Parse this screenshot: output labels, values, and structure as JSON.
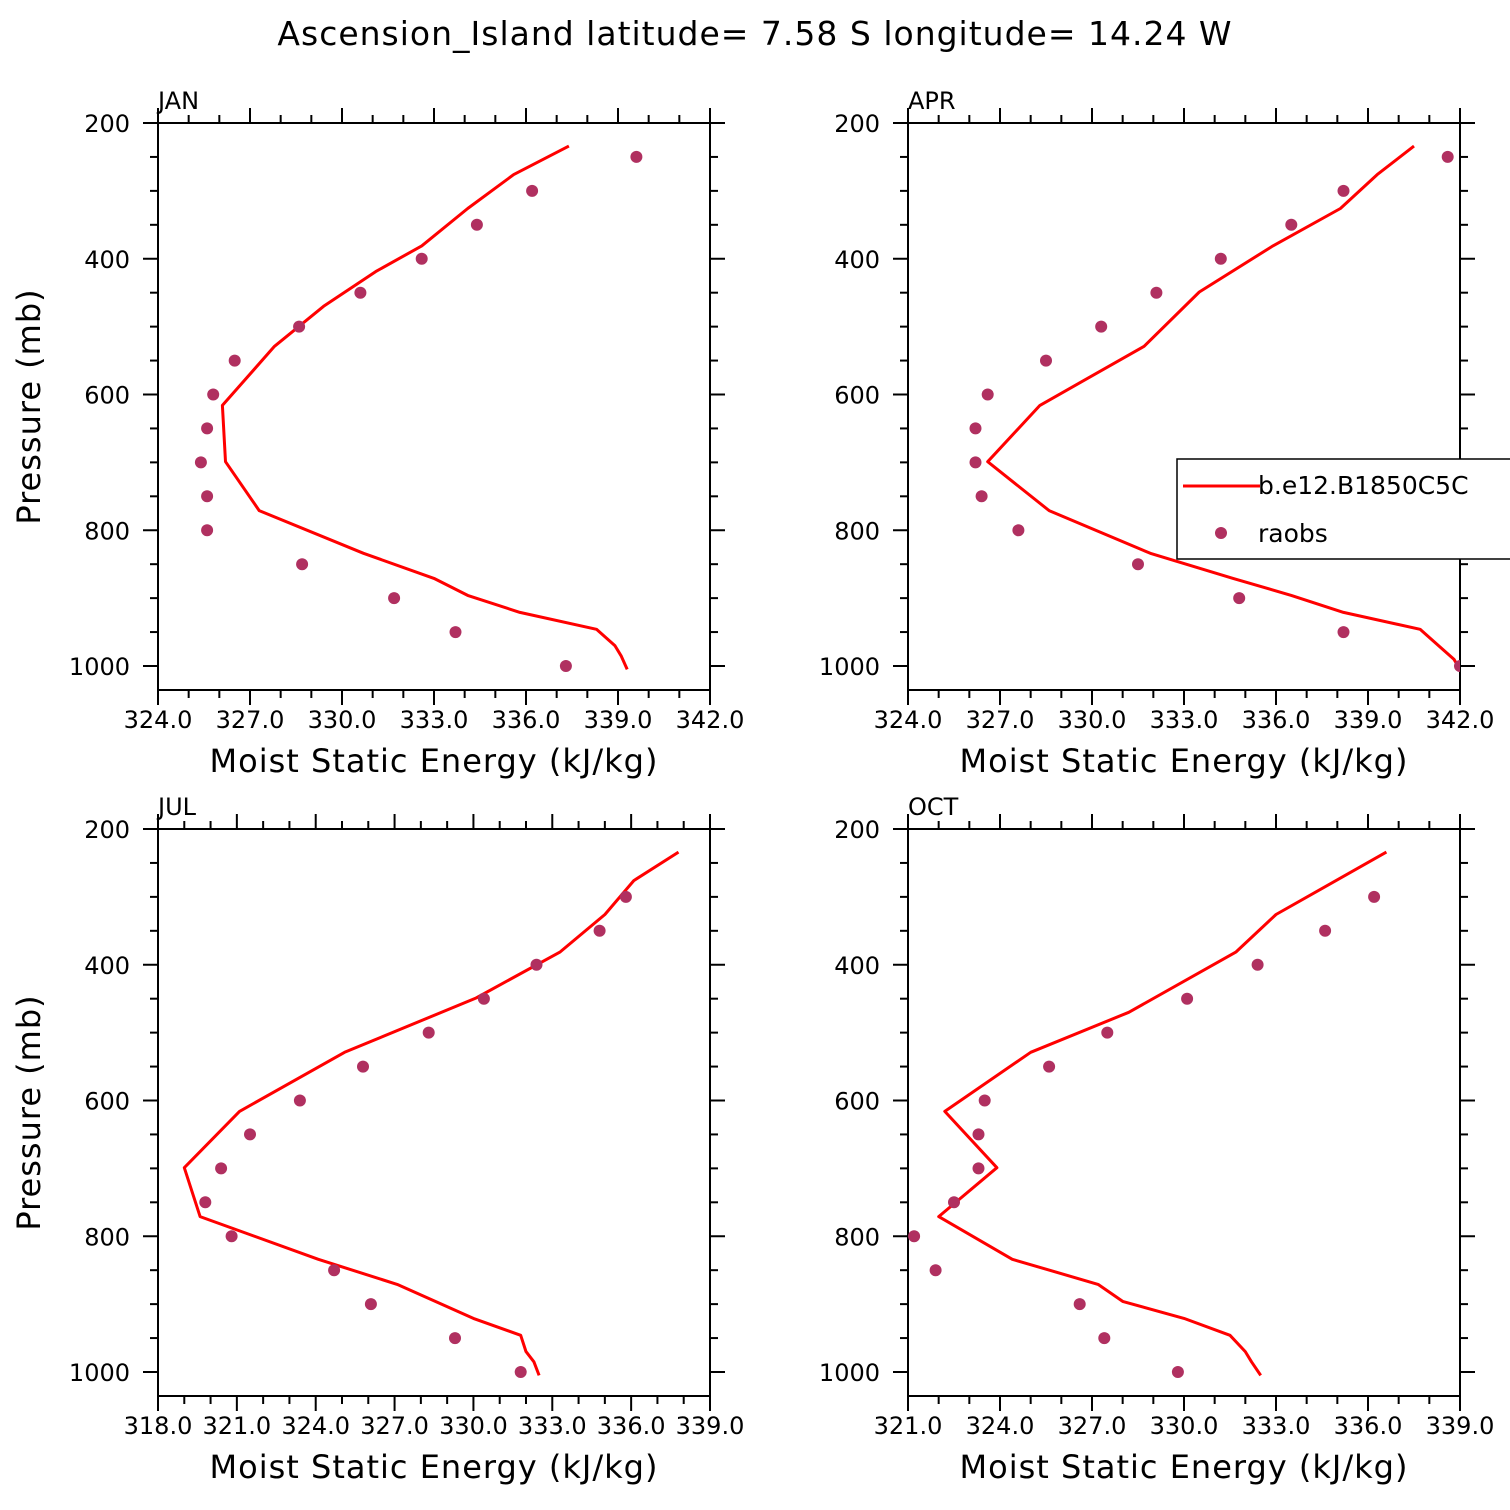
{
  "title": "Ascension_Island  latitude= 7.58 S longitude= 14.24 W",
  "colors": {
    "model_line": "#ff0000",
    "obs_marker": "#b03060"
  },
  "legend": {
    "model_label": "b.e12.B1850C5C",
    "obs_label": "raobs"
  },
  "chart_data": [
    {
      "type": "line",
      "panel": "JAN",
      "xlabel": "Moist Static Energy (kJ/kg)",
      "ylabel": "Pressure (mb)",
      "xlim": [
        324,
        342
      ],
      "ylim": [
        1000,
        200
      ],
      "x_ticks": [
        324,
        327,
        330,
        333,
        336,
        339,
        342
      ],
      "x_tick_labels": [
        "324.0",
        "327.0",
        "330.0",
        "333.0",
        "336.0",
        "339.0",
        "342.0"
      ],
      "y_ticks": [
        200,
        400,
        600,
        800,
        1000
      ],
      "y_tick_labels": [
        "200",
        "400",
        "600",
        "800",
        "1000"
      ],
      "series": [
        {
          "kind": "model",
          "x": [
            339.3,
            339.1,
            338.9,
            338.3,
            335.8,
            334.1,
            333.0,
            330.7,
            327.3,
            326.2,
            326.1,
            327.8,
            329.4,
            331.1,
            332.6,
            334.1,
            335.6,
            337.4
          ],
          "y": [
            1005,
            985,
            970,
            946,
            921,
            896,
            871,
            834,
            771,
            699,
            616,
            529,
            470,
            419,
            381,
            326,
            276,
            234
          ]
        },
        {
          "kind": "obs",
          "x": [
            337.3,
            333.7,
            331.7,
            328.7,
            325.6,
            325.6,
            325.4,
            325.6,
            325.8,
            326.5,
            328.6,
            330.6,
            332.6,
            334.4,
            336.2,
            339.6
          ],
          "y": [
            1000,
            950,
            900,
            850,
            800,
            750,
            700,
            650,
            600,
            550,
            500,
            450,
            400,
            350,
            300,
            250
          ]
        }
      ]
    },
    {
      "type": "line",
      "panel": "APR",
      "xlabel": "Moist Static Energy (kJ/kg)",
      "ylabel": "",
      "xlim": [
        324,
        342
      ],
      "ylim": [
        1000,
        200
      ],
      "x_ticks": [
        324,
        327,
        330,
        333,
        336,
        339,
        342
      ],
      "x_tick_labels": [
        "324.0",
        "327.0",
        "330.0",
        "333.0",
        "336.0",
        "339.0",
        "342.0"
      ],
      "y_ticks": [
        200,
        400,
        600,
        800,
        1000
      ],
      "y_tick_labels": [
        "200",
        "400",
        "600",
        "800",
        "1000"
      ],
      "series": [
        {
          "kind": "model",
          "x": [
            342.0,
            341.8,
            341.3,
            340.7,
            338.2,
            336.5,
            334.6,
            331.9,
            328.6,
            326.6,
            328.3,
            331.7,
            333.5,
            335.9,
            338.1,
            339.3,
            340.5
          ],
          "y": [
            1005,
            990,
            970,
            946,
            921,
            896,
            871,
            834,
            771,
            699,
            616,
            529,
            449,
            381,
            326,
            276,
            234
          ]
        },
        {
          "kind": "obs",
          "x": [
            342.0,
            338.2,
            334.8,
            331.5,
            327.6,
            326.4,
            326.2,
            326.2,
            326.6,
            328.5,
            330.3,
            332.1,
            334.2,
            336.5,
            338.2,
            341.6
          ],
          "y": [
            1000,
            950,
            900,
            850,
            800,
            750,
            700,
            650,
            600,
            550,
            500,
            450,
            400,
            350,
            300,
            250
          ]
        }
      ]
    },
    {
      "type": "line",
      "panel": "JUL",
      "xlabel": "Moist Static Energy (kJ/kg)",
      "ylabel": "Pressure (mb)",
      "xlim": [
        318,
        339
      ],
      "ylim": [
        1000,
        200
      ],
      "x_ticks": [
        318,
        321,
        324,
        327,
        330,
        333,
        336,
        339
      ],
      "x_tick_labels": [
        "318.0",
        "321.0",
        "324.0",
        "327.0",
        "330.0",
        "333.0",
        "336.0",
        "339.0"
      ],
      "y_ticks": [
        200,
        400,
        600,
        800,
        1000
      ],
      "y_tick_labels": [
        "200",
        "400",
        "600",
        "800",
        "1000"
      ],
      "series": [
        {
          "kind": "model",
          "x": [
            332.5,
            332.3,
            332.0,
            331.8,
            330.0,
            327.1,
            324.1,
            319.6,
            319.0,
            321.1,
            325.1,
            330.1,
            333.3,
            335.0,
            336.1,
            337.8
          ],
          "y": [
            1005,
            985,
            970,
            946,
            921,
            871,
            834,
            771,
            699,
            616,
            529,
            449,
            381,
            326,
            276,
            234
          ]
        },
        {
          "kind": "obs",
          "x": [
            331.8,
            329.3,
            326.1,
            324.7,
            320.8,
            319.8,
            320.4,
            321.5,
            323.4,
            325.8,
            328.3,
            330.4,
            332.4,
            334.8,
            335.8
          ],
          "y": [
            1000,
            950,
            900,
            850,
            800,
            750,
            700,
            650,
            600,
            550,
            500,
            450,
            400,
            350,
            300
          ]
        }
      ]
    },
    {
      "type": "line",
      "panel": "OCT",
      "xlabel": "Moist Static Energy (kJ/kg)",
      "ylabel": "",
      "xlim": [
        321,
        339
      ],
      "ylim": [
        1000,
        200
      ],
      "x_ticks": [
        321,
        324,
        327,
        330,
        333,
        336,
        339
      ],
      "x_tick_labels": [
        "321.0",
        "324.0",
        "327.0",
        "330.0",
        "333.0",
        "336.0",
        "339.0"
      ],
      "y_ticks": [
        200,
        400,
        600,
        800,
        1000
      ],
      "y_tick_labels": [
        "200",
        "400",
        "600",
        "800",
        "1000"
      ],
      "series": [
        {
          "kind": "model",
          "x": [
            332.5,
            332.2,
            332.0,
            331.5,
            330.0,
            328.0,
            327.2,
            324.4,
            322.0,
            323.9,
            322.2,
            325.0,
            328.2,
            331.7,
            333.0,
            336.6
          ],
          "y": [
            1005,
            985,
            970,
            946,
            921,
            896,
            871,
            834,
            771,
            699,
            616,
            529,
            470,
            381,
            326,
            234
          ]
        },
        {
          "kind": "obs",
          "x": [
            329.8,
            327.4,
            326.6,
            321.9,
            321.2,
            322.5,
            323.3,
            323.3,
            323.5,
            325.6,
            327.5,
            330.1,
            332.4,
            334.6,
            336.2
          ],
          "y": [
            1000,
            950,
            900,
            850,
            800,
            750,
            700,
            650,
            600,
            550,
            500,
            450,
            400,
            350,
            300
          ]
        }
      ]
    }
  ]
}
